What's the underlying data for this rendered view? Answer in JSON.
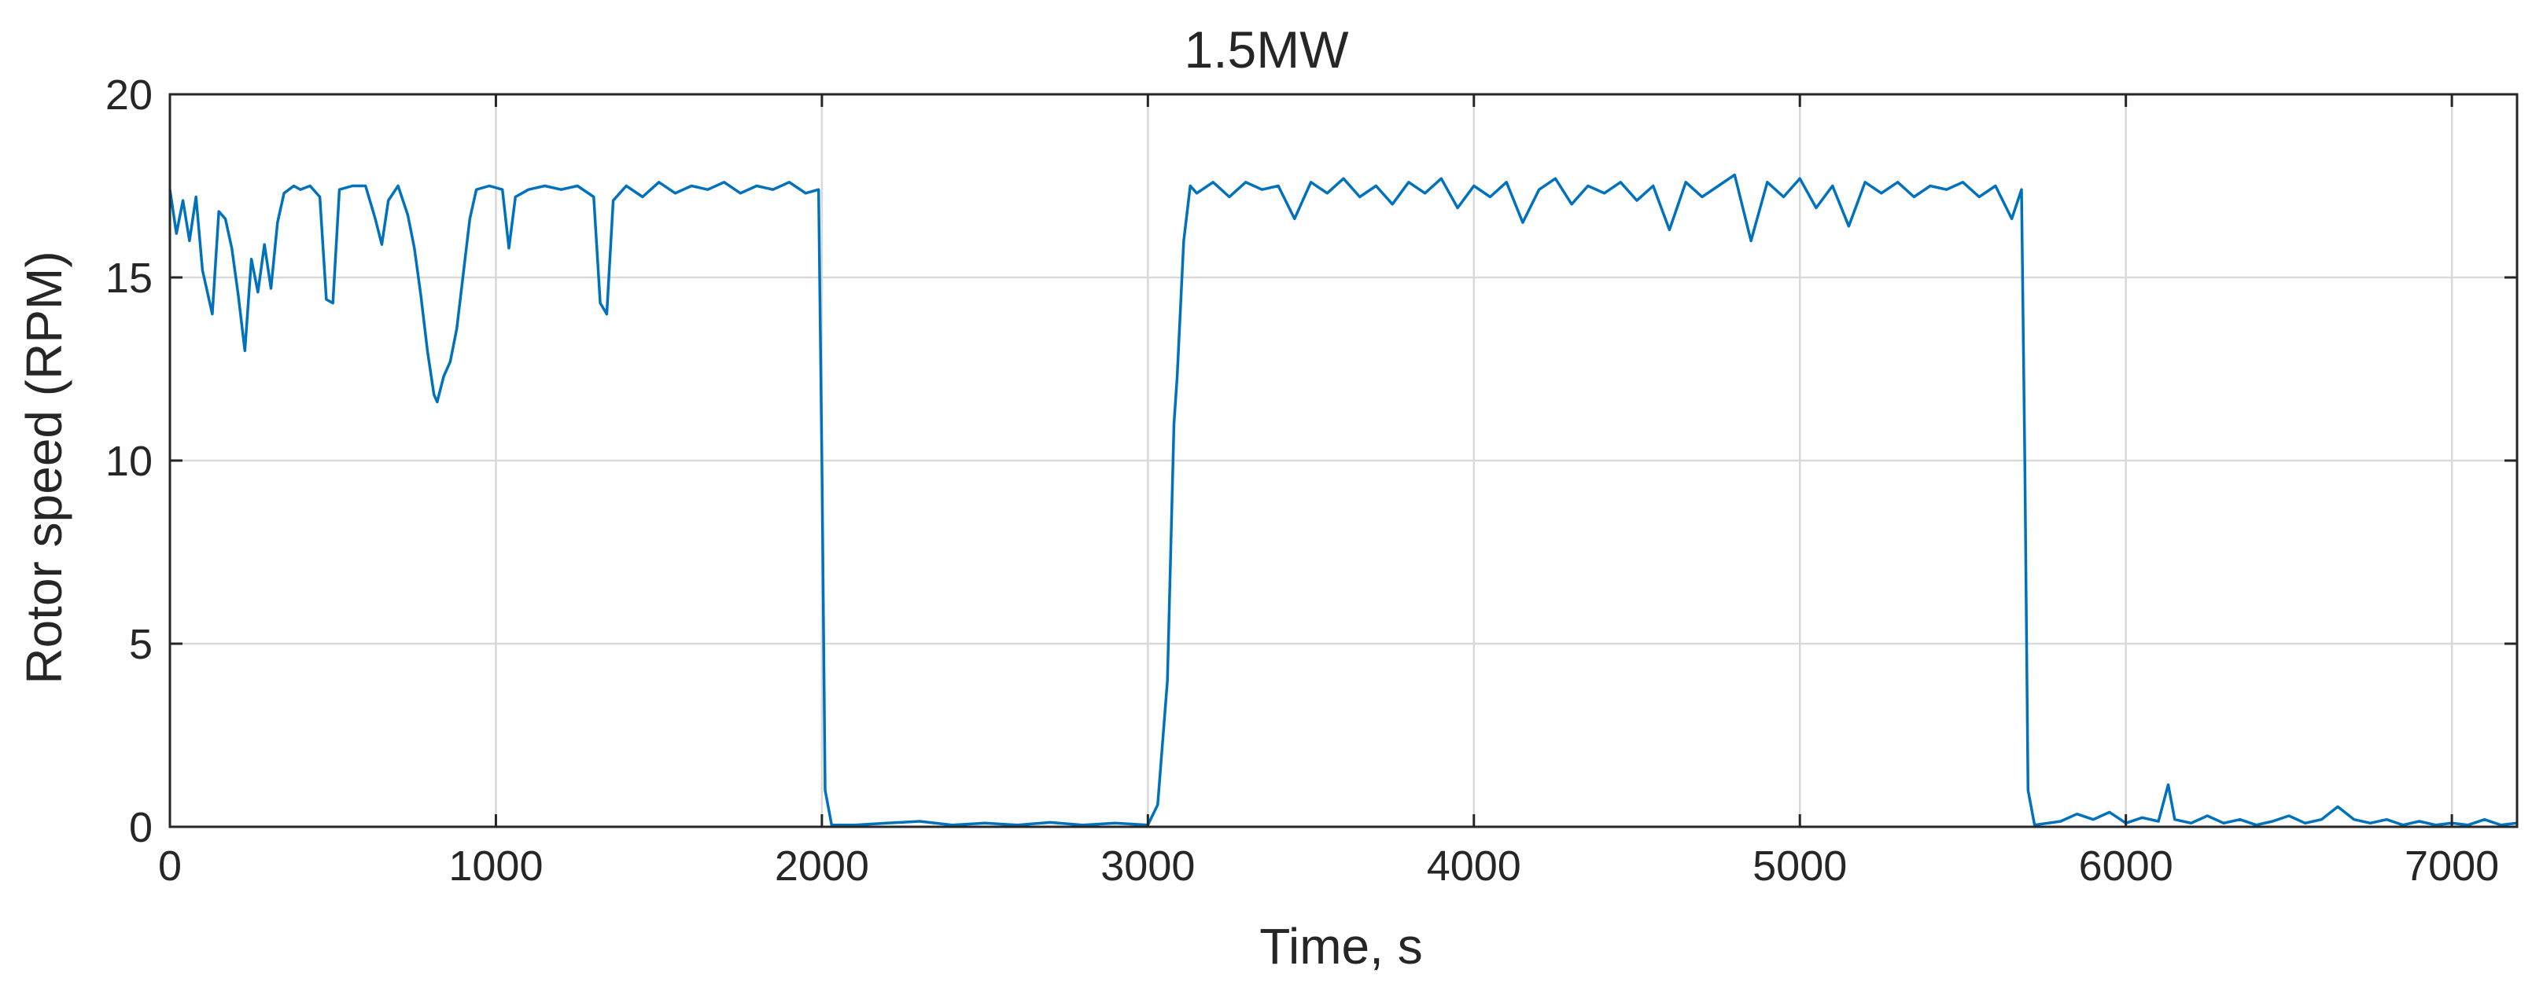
{
  "chart_data": {
    "type": "line",
    "title": "1.5MW",
    "xlabel": "Time, s",
    "ylabel": "Rotor speed (RPM)",
    "xlim": [
      0,
      7200
    ],
    "ylim": [
      0,
      20
    ],
    "x_ticks": [
      0,
      1000,
      2000,
      3000,
      4000,
      5000,
      6000,
      7000
    ],
    "y_ticks": [
      0,
      5,
      10,
      15,
      20
    ],
    "grid": true,
    "legend": "none",
    "colors": {
      "series": "#0072bd",
      "grid": "#d9d9d9",
      "axis": "#262626"
    },
    "series": [
      {
        "points": [
          [
            0,
            17.4
          ],
          [
            20,
            16.2
          ],
          [
            40,
            17.1
          ],
          [
            60,
            16.0
          ],
          [
            80,
            17.2
          ],
          [
            100,
            15.2
          ],
          [
            130,
            14.0
          ],
          [
            150,
            16.8
          ],
          [
            170,
            16.6
          ],
          [
            190,
            15.8
          ],
          [
            210,
            14.5
          ],
          [
            230,
            13.0
          ],
          [
            250,
            15.5
          ],
          [
            270,
            14.6
          ],
          [
            290,
            15.9
          ],
          [
            310,
            14.7
          ],
          [
            330,
            16.5
          ],
          [
            350,
            17.3
          ],
          [
            380,
            17.5
          ],
          [
            400,
            17.4
          ],
          [
            430,
            17.5
          ],
          [
            460,
            17.2
          ],
          [
            480,
            14.4
          ],
          [
            500,
            14.3
          ],
          [
            520,
            17.4
          ],
          [
            560,
            17.5
          ],
          [
            600,
            17.5
          ],
          [
            630,
            16.6
          ],
          [
            650,
            15.9
          ],
          [
            670,
            17.1
          ],
          [
            700,
            17.5
          ],
          [
            730,
            16.7
          ],
          [
            750,
            15.8
          ],
          [
            770,
            14.5
          ],
          [
            790,
            13.0
          ],
          [
            810,
            11.8
          ],
          [
            820,
            11.6
          ],
          [
            840,
            12.3
          ],
          [
            860,
            12.7
          ],
          [
            880,
            13.6
          ],
          [
            900,
            15.1
          ],
          [
            920,
            16.6
          ],
          [
            940,
            17.4
          ],
          [
            980,
            17.5
          ],
          [
            1020,
            17.4
          ],
          [
            1040,
            15.8
          ],
          [
            1060,
            17.2
          ],
          [
            1100,
            17.4
          ],
          [
            1150,
            17.5
          ],
          [
            1200,
            17.4
          ],
          [
            1250,
            17.5
          ],
          [
            1300,
            17.2
          ],
          [
            1320,
            14.3
          ],
          [
            1340,
            14.0
          ],
          [
            1360,
            17.1
          ],
          [
            1400,
            17.5
          ],
          [
            1450,
            17.2
          ],
          [
            1500,
            17.6
          ],
          [
            1550,
            17.3
          ],
          [
            1600,
            17.5
          ],
          [
            1650,
            17.4
          ],
          [
            1700,
            17.6
          ],
          [
            1750,
            17.3
          ],
          [
            1800,
            17.5
          ],
          [
            1850,
            17.4
          ],
          [
            1900,
            17.6
          ],
          [
            1950,
            17.3
          ],
          [
            1990,
            17.4
          ],
          [
            2000,
            10.0
          ],
          [
            2010,
            1.0
          ],
          [
            2030,
            0.05
          ],
          [
            2100,
            0.05
          ],
          [
            2200,
            0.1
          ],
          [
            2300,
            0.15
          ],
          [
            2400,
            0.05
          ],
          [
            2500,
            0.1
          ],
          [
            2600,
            0.05
          ],
          [
            2700,
            0.12
          ],
          [
            2800,
            0.05
          ],
          [
            2900,
            0.1
          ],
          [
            3000,
            0.05
          ],
          [
            3030,
            0.6
          ],
          [
            3060,
            4.0
          ],
          [
            3080,
            11.0
          ],
          [
            3090,
            12.3
          ],
          [
            3110,
            16.0
          ],
          [
            3130,
            17.5
          ],
          [
            3150,
            17.3
          ],
          [
            3200,
            17.6
          ],
          [
            3250,
            17.2
          ],
          [
            3300,
            17.6
          ],
          [
            3350,
            17.4
          ],
          [
            3400,
            17.5
          ],
          [
            3450,
            16.6
          ],
          [
            3500,
            17.6
          ],
          [
            3550,
            17.3
          ],
          [
            3600,
            17.7
          ],
          [
            3650,
            17.2
          ],
          [
            3700,
            17.5
          ],
          [
            3750,
            17.0
          ],
          [
            3800,
            17.6
          ],
          [
            3850,
            17.3
          ],
          [
            3900,
            17.7
          ],
          [
            3950,
            16.9
          ],
          [
            4000,
            17.5
          ],
          [
            4050,
            17.2
          ],
          [
            4100,
            17.6
          ],
          [
            4150,
            16.5
          ],
          [
            4200,
            17.4
          ],
          [
            4250,
            17.7
          ],
          [
            4300,
            17.0
          ],
          [
            4350,
            17.5
          ],
          [
            4400,
            17.3
          ],
          [
            4450,
            17.6
          ],
          [
            4500,
            17.1
          ],
          [
            4550,
            17.5
          ],
          [
            4600,
            16.3
          ],
          [
            4650,
            17.6
          ],
          [
            4700,
            17.2
          ],
          [
            4750,
            17.5
          ],
          [
            4800,
            17.8
          ],
          [
            4850,
            16.0
          ],
          [
            4900,
            17.6
          ],
          [
            4950,
            17.2
          ],
          [
            5000,
            17.7
          ],
          [
            5050,
            16.9
          ],
          [
            5100,
            17.5
          ],
          [
            5150,
            16.4
          ],
          [
            5200,
            17.6
          ],
          [
            5250,
            17.3
          ],
          [
            5300,
            17.6
          ],
          [
            5350,
            17.2
          ],
          [
            5400,
            17.5
          ],
          [
            5450,
            17.4
          ],
          [
            5500,
            17.6
          ],
          [
            5550,
            17.2
          ],
          [
            5600,
            17.5
          ],
          [
            5650,
            16.6
          ],
          [
            5680,
            17.4
          ],
          [
            5690,
            10.0
          ],
          [
            5700,
            1.0
          ],
          [
            5720,
            0.05
          ],
          [
            5800,
            0.15
          ],
          [
            5850,
            0.35
          ],
          [
            5900,
            0.2
          ],
          [
            5950,
            0.4
          ],
          [
            6000,
            0.1
          ],
          [
            6050,
            0.25
          ],
          [
            6100,
            0.15
          ],
          [
            6130,
            1.15
          ],
          [
            6150,
            0.2
          ],
          [
            6200,
            0.1
          ],
          [
            6250,
            0.3
          ],
          [
            6300,
            0.1
          ],
          [
            6350,
            0.2
          ],
          [
            6400,
            0.05
          ],
          [
            6450,
            0.15
          ],
          [
            6500,
            0.3
          ],
          [
            6550,
            0.1
          ],
          [
            6600,
            0.2
          ],
          [
            6650,
            0.55
          ],
          [
            6700,
            0.2
          ],
          [
            6750,
            0.1
          ],
          [
            6800,
            0.2
          ],
          [
            6850,
            0.05
          ],
          [
            6900,
            0.15
          ],
          [
            6950,
            0.05
          ],
          [
            7000,
            0.1
          ],
          [
            7050,
            0.05
          ],
          [
            7100,
            0.2
          ],
          [
            7150,
            0.05
          ],
          [
            7200,
            0.1
          ]
        ]
      }
    ]
  }
}
